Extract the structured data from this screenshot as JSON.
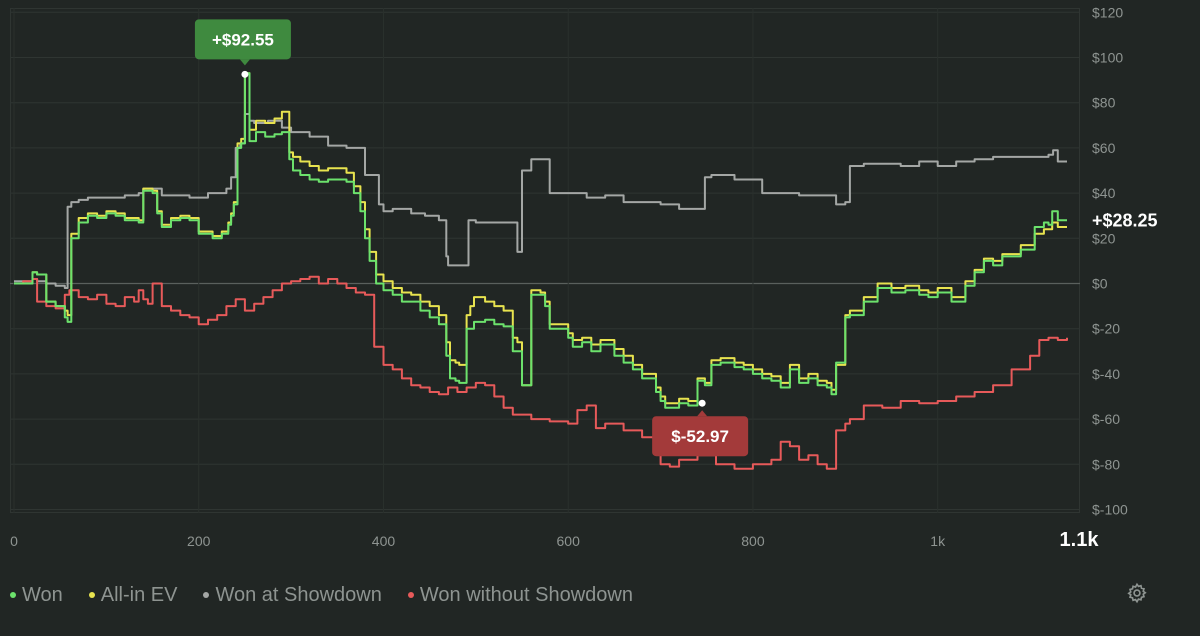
{
  "chart_data": {
    "type": "line",
    "x_ticks": [
      {
        "value": 0,
        "label": "0"
      },
      {
        "value": 200,
        "label": "200"
      },
      {
        "value": 400,
        "label": "400"
      },
      {
        "value": 600,
        "label": "600"
      },
      {
        "value": 800,
        "label": "800"
      },
      {
        "value": 1000,
        "label": "1k"
      },
      {
        "value": 1140,
        "label": "1.1k"
      }
    ],
    "y_ticks": [
      {
        "value": 120,
        "label": "$120"
      },
      {
        "value": 100,
        "label": "$100"
      },
      {
        "value": 80,
        "label": "$80"
      },
      {
        "value": 60,
        "label": "$60"
      },
      {
        "value": 40,
        "label": "$40"
      },
      {
        "value": 20,
        "label": "$20"
      },
      {
        "value": 0,
        "label": "$0"
      },
      {
        "value": -20,
        "label": "$-20"
      },
      {
        "value": -40,
        "label": "$-40"
      },
      {
        "value": -60,
        "label": "$-60"
      },
      {
        "value": -80,
        "label": "$-80"
      },
      {
        "value": -100,
        "label": "$-100"
      }
    ],
    "xlim": [
      0,
      1140
    ],
    "ylim": [
      -100,
      122
    ],
    "grid": true,
    "legend_position": "bottom-left",
    "series": [
      {
        "name": "Won",
        "color": "#6ce26c",
        "x": [
          0,
          20,
          25,
          35,
          45,
          55,
          58,
          62,
          70,
          80,
          90,
          100,
          110,
          120,
          135,
          140,
          150,
          155,
          160,
          170,
          180,
          190,
          200,
          210,
          215,
          225,
          232,
          235,
          238,
          242,
          246,
          250,
          255,
          262,
          272,
          282,
          290,
          298,
          302,
          310,
          320,
          330,
          340,
          360,
          368,
          375,
          380,
          385,
          392,
          400,
          410,
          420,
          430,
          440,
          450,
          460,
          468,
          472,
          478,
          482,
          490,
          494,
          498,
          510,
          520,
          530,
          540,
          545,
          550,
          560,
          570,
          575,
          580,
          600,
          605,
          615,
          625,
          635,
          650,
          660,
          670,
          680,
          695,
          700,
          705,
          720,
          730,
          740,
          748,
          755,
          765,
          780,
          790,
          800,
          810,
          820,
          830,
          840,
          850,
          860,
          870,
          880,
          885,
          890,
          900,
          905,
          920,
          935,
          950,
          965,
          980,
          990,
          1000,
          1015,
          1030,
          1040,
          1050,
          1060,
          1070,
          1090,
          1105,
          1115,
          1120,
          1124,
          1130,
          1140
        ],
        "y": [
          0,
          5,
          4,
          -8,
          -10,
          -15,
          -17,
          20,
          27,
          30,
          29,
          31,
          30,
          28,
          27,
          41,
          40,
          31,
          25,
          28,
          29,
          28,
          22,
          22,
          20,
          22,
          26,
          30,
          35,
          60,
          62,
          93,
          63,
          67,
          65,
          66,
          67,
          55,
          50,
          48,
          46,
          45,
          46,
          45,
          40,
          32,
          20,
          10,
          0,
          -3,
          -5,
          -8,
          -8,
          -12,
          -15,
          -18,
          -32,
          -42,
          -43,
          -44,
          -20,
          -20,
          -17,
          -16,
          -18,
          -19,
          -30,
          -30,
          -45,
          -5,
          -5,
          -10,
          -20,
          -24,
          -28,
          -26,
          -30,
          -27,
          -32,
          -35,
          -38,
          -42,
          -48,
          -52,
          -55,
          -53,
          -54,
          -43,
          -45,
          -36,
          -35,
          -37,
          -38,
          -40,
          -42,
          -43,
          -46,
          -38,
          -44,
          -42,
          -45,
          -46,
          -49,
          -35,
          -15,
          -14,
          -8,
          -2,
          -4,
          -3,
          -5,
          -6,
          -4,
          -8,
          -1,
          5,
          10,
          8,
          12,
          15,
          25,
          27,
          26,
          32,
          28,
          28
        ]
      },
      {
        "name": "All-in EV",
        "color": "#e8e34f",
        "x": [
          0,
          20,
          25,
          35,
          45,
          55,
          58,
          62,
          70,
          80,
          90,
          100,
          110,
          120,
          135,
          140,
          150,
          155,
          160,
          170,
          180,
          190,
          200,
          210,
          215,
          225,
          232,
          235,
          238,
          242,
          246,
          250,
          255,
          262,
          272,
          282,
          290,
          298,
          302,
          310,
          320,
          330,
          340,
          360,
          368,
          375,
          380,
          385,
          392,
          400,
          410,
          420,
          430,
          440,
          450,
          460,
          468,
          472,
          478,
          482,
          490,
          494,
          498,
          510,
          520,
          530,
          540,
          545,
          550,
          560,
          570,
          575,
          580,
          600,
          605,
          615,
          625,
          635,
          650,
          660,
          670,
          680,
          695,
          700,
          705,
          720,
          730,
          740,
          748,
          755,
          765,
          780,
          790,
          800,
          810,
          820,
          830,
          840,
          850,
          860,
          870,
          880,
          885,
          890,
          900,
          905,
          920,
          935,
          950,
          965,
          980,
          990,
          1000,
          1015,
          1030,
          1040,
          1050,
          1060,
          1070,
          1090,
          1105,
          1115,
          1120,
          1124,
          1130,
          1140
        ],
        "y": [
          0,
          5,
          4,
          -8,
          -10,
          -12,
          -14,
          22,
          29,
          31,
          30,
          32,
          31,
          29,
          28,
          42,
          41,
          32,
          26,
          29,
          30,
          29,
          23,
          23,
          21,
          23,
          27,
          31,
          36,
          62,
          64,
          93,
          68,
          72,
          71,
          73,
          76,
          58,
          56,
          54,
          52,
          50,
          51,
          49,
          43,
          36,
          24,
          14,
          4,
          1,
          -2,
          -4,
          -5,
          -8,
          -10,
          -14,
          -26,
          -34,
          -35,
          -36,
          -14,
          -10,
          -6,
          -8,
          -10,
          -12,
          -24,
          -26,
          -45,
          -3,
          -4,
          -8,
          -18,
          -22,
          -25,
          -24,
          -27,
          -25,
          -29,
          -32,
          -36,
          -40,
          -46,
          -50,
          -53,
          -51,
          -52,
          -42,
          -44,
          -34,
          -33,
          -35,
          -36,
          -38,
          -40,
          -41,
          -44,
          -36,
          -42,
          -40,
          -43,
          -44,
          -47,
          -36,
          -14,
          -12,
          -6,
          0,
          -2,
          -1,
          -3,
          -4,
          -2,
          -6,
          1,
          6,
          11,
          10,
          13,
          17,
          22,
          24,
          24,
          27,
          25,
          25
        ]
      },
      {
        "name": "Won at Showdown",
        "color": "#a4a7a5",
        "x": [
          0,
          20,
          25,
          35,
          45,
          55,
          58,
          62,
          70,
          80,
          100,
          120,
          135,
          140,
          160,
          190,
          210,
          230,
          235,
          240,
          245,
          250,
          255,
          260,
          275,
          290,
          300,
          320,
          340,
          360,
          380,
          390,
          395,
          400,
          410,
          430,
          445,
          460,
          468,
          470,
          490,
          492,
          500,
          540,
          545,
          550,
          560,
          578,
          580,
          600,
          620,
          640,
          660,
          680,
          700,
          720,
          740,
          748,
          755,
          780,
          810,
          820,
          850,
          880,
          890,
          900,
          905,
          920,
          940,
          960,
          980,
          1000,
          1020,
          1040,
          1060,
          1120,
          1125,
          1130,
          1140
        ],
        "y": [
          1,
          2,
          1,
          0,
          -1,
          -2,
          34,
          36,
          37,
          38,
          38,
          39,
          40,
          42,
          39,
          38,
          40,
          42,
          47,
          60,
          62,
          75,
          72,
          71,
          72,
          69,
          67,
          65,
          61,
          60,
          48,
          48,
          35,
          32,
          33,
          31,
          30,
          28,
          12,
          8,
          8,
          28,
          27,
          27,
          14,
          50,
          55,
          55,
          40,
          40,
          38,
          39,
          36,
          36,
          35,
          33,
          33,
          47,
          48,
          46,
          40,
          40,
          39,
          39,
          35,
          36,
          52,
          53,
          53,
          52,
          54,
          52,
          54,
          55,
          56,
          57,
          59,
          54,
          54
        ]
      },
      {
        "name": "Won without Showdown",
        "color": "#e75a5a",
        "x": [
          0,
          10,
          20,
          25,
          35,
          45,
          55,
          60,
          70,
          80,
          90,
          100,
          110,
          120,
          130,
          135,
          140,
          145,
          150,
          160,
          170,
          180,
          190,
          200,
          210,
          220,
          230,
          240,
          250,
          260,
          270,
          280,
          290,
          300,
          310,
          320,
          330,
          340,
          350,
          360,
          370,
          380,
          390,
          400,
          410,
          420,
          430,
          440,
          450,
          460,
          470,
          480,
          490,
          500,
          510,
          520,
          530,
          540,
          560,
          580,
          600,
          610,
          620,
          630,
          640,
          660,
          680,
          700,
          710,
          720,
          740,
          760,
          780,
          800,
          820,
          830,
          840,
          850,
          860,
          870,
          880,
          890,
          900,
          905,
          920,
          940,
          960,
          980,
          1000,
          1020,
          1040,
          1060,
          1080,
          1100,
          1110,
          1120,
          1130,
          1140
        ],
        "y": [
          0,
          1,
          2,
          -8,
          -10,
          -11,
          -5,
          -3,
          -6,
          -7,
          -5,
          -9,
          -10,
          -6,
          -8,
          -3,
          -7,
          -9,
          0,
          -10,
          -12,
          -14,
          -15,
          -18,
          -16,
          -14,
          -10,
          -7,
          -12,
          -9,
          -6,
          -3,
          0,
          1,
          2,
          3,
          0,
          2,
          0,
          -2,
          -4,
          -5,
          -28,
          -36,
          -38,
          -42,
          -45,
          -46,
          -48,
          -49,
          -46,
          -48,
          -46,
          -44,
          -45,
          -50,
          -55,
          -58,
          -60,
          -61,
          -62,
          -56,
          -54,
          -64,
          -62,
          -65,
          -68,
          -80,
          -81,
          -78,
          -76,
          -80,
          -82,
          -80,
          -78,
          -70,
          -72,
          -78,
          -76,
          -80,
          -82,
          -65,
          -62,
          -60,
          -54,
          -55,
          -52,
          -53,
          -52,
          -50,
          -48,
          -45,
          -38,
          -32,
          -25,
          -24,
          -25,
          -24
        ]
      }
    ],
    "annotations": [
      {
        "text": "+$92.55",
        "x": 250,
        "y": 92.55,
        "color": "#3f8a3f"
      },
      {
        "text": "$-52.97",
        "x": 745,
        "y": -52.97,
        "color": "#a33a3a"
      }
    ],
    "end_label": {
      "text": "+$28.25",
      "y": 28.25
    }
  },
  "legend": {
    "items": [
      {
        "label": "Won",
        "color": "#6ce26c"
      },
      {
        "label": "All-in EV",
        "color": "#e8e34f"
      },
      {
        "label": "Won at Showdown",
        "color": "#a4a7a5"
      },
      {
        "label": "Won without Showdown",
        "color": "#e75a5a"
      }
    ]
  },
  "controls": {
    "settings_icon": "gear-icon"
  }
}
